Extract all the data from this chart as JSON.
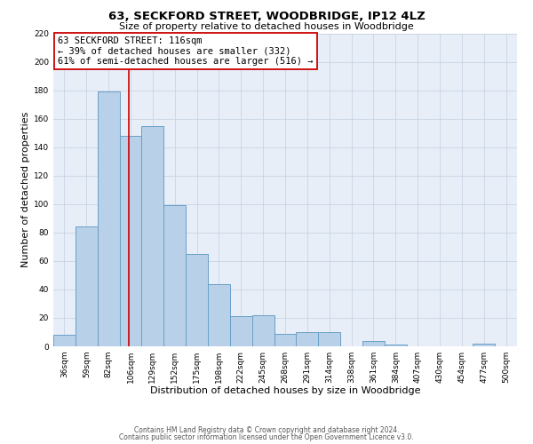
{
  "title": "63, SECKFORD STREET, WOODBRIDGE, IP12 4LZ",
  "subtitle": "Size of property relative to detached houses in Woodbridge",
  "xlabel": "Distribution of detached houses by size in Woodbridge",
  "ylabel": "Number of detached properties",
  "bar_labels": [
    "36sqm",
    "59sqm",
    "82sqm",
    "106sqm",
    "129sqm",
    "152sqm",
    "175sqm",
    "198sqm",
    "222sqm",
    "245sqm",
    "268sqm",
    "291sqm",
    "314sqm",
    "338sqm",
    "361sqm",
    "384sqm",
    "407sqm",
    "430sqm",
    "454sqm",
    "477sqm",
    "500sqm"
  ],
  "bar_values": [
    8,
    84,
    179,
    148,
    155,
    99,
    65,
    44,
    21,
    22,
    9,
    10,
    10,
    0,
    4,
    1,
    0,
    0,
    0,
    2,
    0
  ],
  "bar_color": "#b8d0e8",
  "bar_edge_color": "#6aa0c8",
  "vline_x": 3.43,
  "vline_color": "#cc0000",
  "annotation_text": "63 SECKFORD STREET: 116sqm\n← 39% of detached houses are smaller (332)\n61% of semi-detached houses are larger (516) →",
  "annotation_box_color": "#ffffff",
  "annotation_box_edge_color": "#cc0000",
  "ylim": [
    0,
    220
  ],
  "yticks": [
    0,
    20,
    40,
    60,
    80,
    100,
    120,
    140,
    160,
    180,
    200,
    220
  ],
  "footer1": "Contains HM Land Registry data © Crown copyright and database right 2024.",
  "footer2": "Contains public sector information licensed under the Open Government Licence v3.0.",
  "background_color": "#ffffff",
  "plot_bg_color": "#e8eef8",
  "grid_color": "#c8d4e4",
  "title_fontsize": 9.5,
  "subtitle_fontsize": 8,
  "xlabel_fontsize": 8,
  "ylabel_fontsize": 8,
  "tick_fontsize": 6.5,
  "footer_fontsize": 5.5,
  "annotation_fontsize": 7.5
}
